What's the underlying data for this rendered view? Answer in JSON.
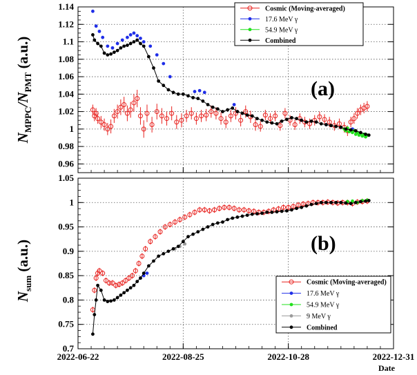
{
  "chart_data": [
    {
      "type": "scatter",
      "panel_label": "(a)",
      "ylabel": {
        "main": "N",
        "sub1": "MPPC",
        "mid": "/N",
        "sub2": "PMT",
        "unit": " (a.u.)"
      },
      "xlabel": "Date",
      "ylim": [
        0.95,
        1.14
      ],
      "yticks": [
        "0.96",
        "0.98",
        "1",
        "1.02",
        "1.04",
        "1.06",
        "1.08",
        "1.1",
        "1.12",
        "1.14"
      ],
      "xlim": [
        "2022-06-22",
        "2022-12-31"
      ],
      "xticks": [
        "2022-06-22",
        "2022-08-25",
        "2022-10-28",
        "2022-12-31"
      ],
      "grid": true,
      "legend_position": "top-right",
      "colors": {
        "cosmic": "#e8211e",
        "mev176": "#1f2ee8",
        "mev549": "#22e01d",
        "combined": "#000000"
      },
      "series": [
        {
          "name": "Cosmic (Moving-averaged)",
          "x": [
            "2022-07-01",
            "2022-07-02",
            "2022-07-03",
            "2022-07-04",
            "2022-07-06",
            "2022-07-08",
            "2022-07-10",
            "2022-07-12",
            "2022-07-14",
            "2022-07-16",
            "2022-07-18",
            "2022-07-20",
            "2022-07-22",
            "2022-07-24",
            "2022-07-26",
            "2022-07-28",
            "2022-07-30",
            "2022-08-01",
            "2022-08-03",
            "2022-08-06",
            "2022-08-09",
            "2022-08-12",
            "2022-08-15",
            "2022-08-18",
            "2022-08-21",
            "2022-08-24",
            "2022-08-27",
            "2022-08-30",
            "2022-09-02",
            "2022-09-05",
            "2022-09-08",
            "2022-09-11",
            "2022-09-14",
            "2022-09-17",
            "2022-09-20",
            "2022-09-23",
            "2022-09-26",
            "2022-09-29",
            "2022-10-02",
            "2022-10-05",
            "2022-10-08",
            "2022-10-11",
            "2022-10-14",
            "2022-10-17",
            "2022-10-20",
            "2022-10-23",
            "2022-10-26",
            "2022-10-29",
            "2022-11-01",
            "2022-11-04",
            "2022-11-07",
            "2022-11-10",
            "2022-11-13",
            "2022-11-16",
            "2022-11-19",
            "2022-11-22",
            "2022-11-25",
            "2022-11-28",
            "2022-12-01",
            "2022-12-03",
            "2022-12-05",
            "2022-12-07",
            "2022-12-09",
            "2022-12-11",
            "2022-12-13",
            "2022-12-15"
          ],
          "y": [
            1.022,
            1.015,
            1.018,
            1.012,
            1.008,
            1.005,
            1.0,
            1.003,
            1.015,
            1.02,
            1.025,
            1.028,
            1.018,
            1.022,
            1.03,
            1.035,
            1.015,
            1.0,
            1.018,
            1.005,
            1.02,
            1.015,
            1.012,
            1.018,
            1.008,
            1.01,
            1.015,
            1.018,
            1.012,
            1.015,
            1.016,
            1.02,
            1.018,
            1.012,
            1.008,
            1.015,
            1.018,
            1.01,
            1.02,
            1.014,
            1.005,
            1.003,
            1.016,
            1.012,
            1.015,
            1.004,
            1.018,
            1.01,
            1.005,
            1.012,
            1.008,
            1.006,
            1.01,
            1.014,
            1.011,
            1.008,
            1.004,
            1.006,
            1.002,
            0.998,
            1.008,
            1.012,
            1.018,
            1.022,
            1.024,
            1.026
          ],
          "err": [
            0.006,
            0.006,
            0.006,
            0.006,
            0.007,
            0.007,
            0.007,
            0.008,
            0.008,
            0.008,
            0.009,
            0.009,
            0.009,
            0.009,
            0.01,
            0.01,
            0.01,
            0.01,
            0.01,
            0.009,
            0.009,
            0.009,
            0.008,
            0.008,
            0.008,
            0.008,
            0.007,
            0.007,
            0.007,
            0.007,
            0.007,
            0.007,
            0.007,
            0.007,
            0.007,
            0.007,
            0.007,
            0.007,
            0.007,
            0.007,
            0.007,
            0.006,
            0.006,
            0.006,
            0.006,
            0.006,
            0.006,
            0.006,
            0.006,
            0.006,
            0.006,
            0.006,
            0.006,
            0.006,
            0.006,
            0.006,
            0.006,
            0.006,
            0.006,
            0.006,
            0.006,
            0.006,
            0.006,
            0.006,
            0.006,
            0.006
          ]
        },
        {
          "name": "17.6 MeV γ",
          "x": [
            "2022-07-01",
            "2022-07-03",
            "2022-07-05",
            "2022-07-07",
            "2022-07-10",
            "2022-07-13",
            "2022-07-16",
            "2022-07-19",
            "2022-07-22",
            "2022-07-24",
            "2022-07-26",
            "2022-07-28",
            "2022-07-30",
            "2022-08-01",
            "2022-08-05",
            "2022-08-09",
            "2022-08-13",
            "2022-08-17",
            "2022-09-01",
            "2022-09-04",
            "2022-09-07",
            "2022-09-25",
            "2022-11-05",
            "2022-11-20",
            "2022-12-06"
          ],
          "y": [
            1.135,
            1.118,
            1.112,
            1.105,
            1.095,
            1.093,
            1.098,
            1.102,
            1.105,
            1.108,
            1.11,
            1.107,
            1.104,
            1.1,
            1.095,
            1.085,
            1.075,
            1.06,
            1.043,
            1.044,
            1.042,
            1.028,
            1.01,
            1.005,
            1.0
          ]
        },
        {
          "name": "54.9 MeV γ",
          "x": [
            "2022-12-01",
            "2022-12-02",
            "2022-12-03",
            "2022-12-04",
            "2022-12-05",
            "2022-12-06",
            "2022-12-07",
            "2022-12-08",
            "2022-12-09",
            "2022-12-10",
            "2022-12-11",
            "2022-12-12",
            "2022-12-13",
            "2022-12-14",
            "2022-12-15"
          ],
          "y": [
            1.0,
            0.998,
            1.001,
            0.997,
            0.999,
            0.996,
            0.998,
            0.994,
            0.996,
            0.993,
            0.995,
            0.992,
            0.994,
            0.991,
            0.993
          ]
        },
        {
          "name": "Combined",
          "x": [
            "2022-07-01",
            "2022-07-02",
            "2022-07-04",
            "2022-07-06",
            "2022-07-08",
            "2022-07-10",
            "2022-07-12",
            "2022-07-14",
            "2022-07-16",
            "2022-07-18",
            "2022-07-20",
            "2022-07-22",
            "2022-07-24",
            "2022-07-26",
            "2022-07-28",
            "2022-07-30",
            "2022-08-01",
            "2022-08-04",
            "2022-08-07",
            "2022-08-10",
            "2022-08-13",
            "2022-08-16",
            "2022-08-19",
            "2022-08-22",
            "2022-08-25",
            "2022-08-28",
            "2022-08-31",
            "2022-09-03",
            "2022-09-06",
            "2022-09-09",
            "2022-09-12",
            "2022-09-15",
            "2022-09-18",
            "2022-09-21",
            "2022-09-24",
            "2022-09-27",
            "2022-09-30",
            "2022-10-03",
            "2022-10-06",
            "2022-10-09",
            "2022-10-12",
            "2022-10-15",
            "2022-10-18",
            "2022-10-21",
            "2022-10-24",
            "2022-10-27",
            "2022-10-30",
            "2022-11-02",
            "2022-11-05",
            "2022-11-08",
            "2022-11-11",
            "2022-11-14",
            "2022-11-17",
            "2022-11-20",
            "2022-11-23",
            "2022-11-26",
            "2022-11-29",
            "2022-12-02",
            "2022-12-05",
            "2022-12-08",
            "2022-12-11",
            "2022-12-14",
            "2022-12-16"
          ],
          "y": [
            1.108,
            1.102,
            1.098,
            1.095,
            1.087,
            1.085,
            1.086,
            1.088,
            1.09,
            1.093,
            1.095,
            1.096,
            1.098,
            1.1,
            1.102,
            1.098,
            1.095,
            1.083,
            1.07,
            1.055,
            1.05,
            1.045,
            1.042,
            1.04,
            1.04,
            1.038,
            1.036,
            1.035,
            1.032,
            1.028,
            1.025,
            1.023,
            1.02,
            1.022,
            1.024,
            1.02,
            1.018,
            1.016,
            1.015,
            1.012,
            1.01,
            1.008,
            1.007,
            1.006,
            1.009,
            1.011,
            1.013,
            1.012,
            1.01,
            1.008,
            1.009,
            1.008,
            1.006,
            1.005,
            1.004,
            1.003,
            1.002,
            1.0,
            0.999,
            0.998,
            0.996,
            0.994,
            0.993
          ]
        }
      ]
    },
    {
      "type": "scatter",
      "panel_label": "(b)",
      "ylabel": {
        "main": "N",
        "sub1": "sum",
        "unit": " (a.u.)"
      },
      "xlabel": "Date",
      "ylim": [
        0.7,
        1.05
      ],
      "yticks": [
        "0.7",
        "0.75",
        "0.8",
        "0.85",
        "0.9",
        "0.95",
        "1",
        "1.05"
      ],
      "xlim": [
        "2022-06-22",
        "2022-12-31"
      ],
      "xticks": [
        "2022-06-22",
        "2022-08-25",
        "2022-10-28",
        "2022-12-31"
      ],
      "grid": true,
      "legend_position": "bottom-right",
      "colors": {
        "cosmic": "#e8211e",
        "mev176": "#1f2ee8",
        "mev549": "#22e01d",
        "mev9": "#9a9a9a",
        "combined": "#000000"
      },
      "series": [
        {
          "name": "Cosmic (Moving-averaged)",
          "x": [
            "2022-07-01",
            "2022-07-02",
            "2022-07-03",
            "2022-07-04",
            "2022-07-05",
            "2022-07-07",
            "2022-07-09",
            "2022-07-11",
            "2022-07-13",
            "2022-07-15",
            "2022-07-17",
            "2022-07-19",
            "2022-07-21",
            "2022-07-23",
            "2022-07-25",
            "2022-07-27",
            "2022-07-29",
            "2022-07-31",
            "2022-08-02",
            "2022-08-05",
            "2022-08-08",
            "2022-08-11",
            "2022-08-14",
            "2022-08-17",
            "2022-08-20",
            "2022-08-23",
            "2022-08-26",
            "2022-08-29",
            "2022-09-01",
            "2022-09-04",
            "2022-09-07",
            "2022-09-10",
            "2022-09-13",
            "2022-09-16",
            "2022-09-19",
            "2022-09-22",
            "2022-09-25",
            "2022-09-28",
            "2022-10-01",
            "2022-10-04",
            "2022-10-07",
            "2022-10-10",
            "2022-10-13",
            "2022-10-16",
            "2022-10-19",
            "2022-10-22",
            "2022-10-25",
            "2022-10-28",
            "2022-10-31",
            "2022-11-03",
            "2022-11-06",
            "2022-11-09",
            "2022-11-12",
            "2022-11-15",
            "2022-11-18",
            "2022-11-21",
            "2022-11-24",
            "2022-11-27",
            "2022-11-30",
            "2022-12-03",
            "2022-12-06",
            "2022-12-09",
            "2022-12-12",
            "2022-12-15"
          ],
          "y": [
            0.78,
            0.82,
            0.845,
            0.855,
            0.86,
            0.855,
            0.84,
            0.835,
            0.835,
            0.83,
            0.832,
            0.835,
            0.84,
            0.845,
            0.85,
            0.86,
            0.875,
            0.89,
            0.905,
            0.92,
            0.93,
            0.94,
            0.95,
            0.955,
            0.96,
            0.965,
            0.97,
            0.975,
            0.98,
            0.985,
            0.985,
            0.983,
            0.985,
            0.988,
            0.99,
            0.99,
            0.988,
            0.985,
            0.985,
            0.983,
            0.982,
            0.98,
            0.98,
            0.982,
            0.985,
            0.987,
            0.99,
            0.99,
            0.992,
            0.995,
            0.997,
            0.998,
            1.0,
            1.0,
            1.0,
            1.001,
            1.0,
            0.999,
            1.0,
            1.0,
            0.998,
            1.001,
            1.002,
            1.003
          ],
          "err": [
            0.006,
            0.006,
            0.006,
            0.006,
            0.006,
            0.006,
            0.006,
            0.006,
            0.006,
            0.006,
            0.006,
            0.006,
            0.006,
            0.006,
            0.006,
            0.006,
            0.006,
            0.006,
            0.006,
            0.006,
            0.006,
            0.006,
            0.006,
            0.006,
            0.006,
            0.006,
            0.006,
            0.006,
            0.006,
            0.006,
            0.006,
            0.006,
            0.006,
            0.006,
            0.006,
            0.006,
            0.006,
            0.006,
            0.006,
            0.006,
            0.006,
            0.006,
            0.006,
            0.006,
            0.006,
            0.006,
            0.006,
            0.006,
            0.006,
            0.006,
            0.006,
            0.006,
            0.006,
            0.006,
            0.006,
            0.006,
            0.006,
            0.006,
            0.006,
            0.006,
            0.006,
            0.006,
            0.006,
            0.006
          ]
        },
        {
          "name": "17.6 MeV γ",
          "x": [
            "2022-07-30",
            "2022-08-01",
            "2022-08-03"
          ],
          "y": [
            0.845,
            0.85,
            0.855
          ]
        },
        {
          "name": "54.9 MeV γ",
          "x": [
            "2022-12-03",
            "2022-12-06",
            "2022-12-09",
            "2022-12-12",
            "2022-12-15"
          ],
          "y": [
            1.002,
            1.003,
            1.0,
            1.004,
            1.005
          ]
        },
        {
          "name": "9 MeV γ",
          "x": [
            "2022-08-20",
            "2022-08-23",
            "2022-08-26"
          ],
          "y": [
            0.905,
            0.91,
            0.915
          ]
        },
        {
          "name": "Combined",
          "x": [
            "2022-07-01",
            "2022-07-02",
            "2022-07-03",
            "2022-07-04",
            "2022-07-06",
            "2022-07-08",
            "2022-07-10",
            "2022-07-12",
            "2022-07-14",
            "2022-07-16",
            "2022-07-18",
            "2022-07-20",
            "2022-07-22",
            "2022-07-24",
            "2022-07-26",
            "2022-07-28",
            "2022-07-30",
            "2022-08-01",
            "2022-08-04",
            "2022-08-07",
            "2022-08-10",
            "2022-08-13",
            "2022-08-16",
            "2022-08-19",
            "2022-08-22",
            "2022-08-25",
            "2022-08-28",
            "2022-08-31",
            "2022-09-03",
            "2022-09-06",
            "2022-09-09",
            "2022-09-12",
            "2022-09-15",
            "2022-09-18",
            "2022-09-21",
            "2022-09-24",
            "2022-09-27",
            "2022-09-30",
            "2022-10-03",
            "2022-10-06",
            "2022-10-09",
            "2022-10-12",
            "2022-10-15",
            "2022-10-18",
            "2022-10-21",
            "2022-10-24",
            "2022-10-27",
            "2022-10-30",
            "2022-11-02",
            "2022-11-05",
            "2022-11-08",
            "2022-11-11",
            "2022-11-14",
            "2022-11-17",
            "2022-11-20",
            "2022-11-23",
            "2022-11-26",
            "2022-11-29",
            "2022-12-02",
            "2022-12-05",
            "2022-12-08",
            "2022-12-11",
            "2022-12-14",
            "2022-12-16"
          ],
          "y": [
            0.73,
            0.77,
            0.8,
            0.83,
            0.82,
            0.8,
            0.797,
            0.798,
            0.8,
            0.805,
            0.81,
            0.815,
            0.82,
            0.825,
            0.83,
            0.838,
            0.845,
            0.855,
            0.87,
            0.88,
            0.89,
            0.895,
            0.9,
            0.905,
            0.91,
            0.92,
            0.93,
            0.935,
            0.94,
            0.945,
            0.95,
            0.955,
            0.958,
            0.96,
            0.965,
            0.968,
            0.97,
            0.972,
            0.974,
            0.976,
            0.977,
            0.978,
            0.98,
            0.98,
            0.981,
            0.982,
            0.983,
            0.985,
            0.988,
            0.99,
            0.993,
            0.996,
            0.998,
            1.0,
            1.0,
            1.0,
            1.0,
            1.0,
            0.999,
            0.998,
            1.0,
            1.002,
            1.003,
            1.004
          ]
        }
      ]
    }
  ]
}
